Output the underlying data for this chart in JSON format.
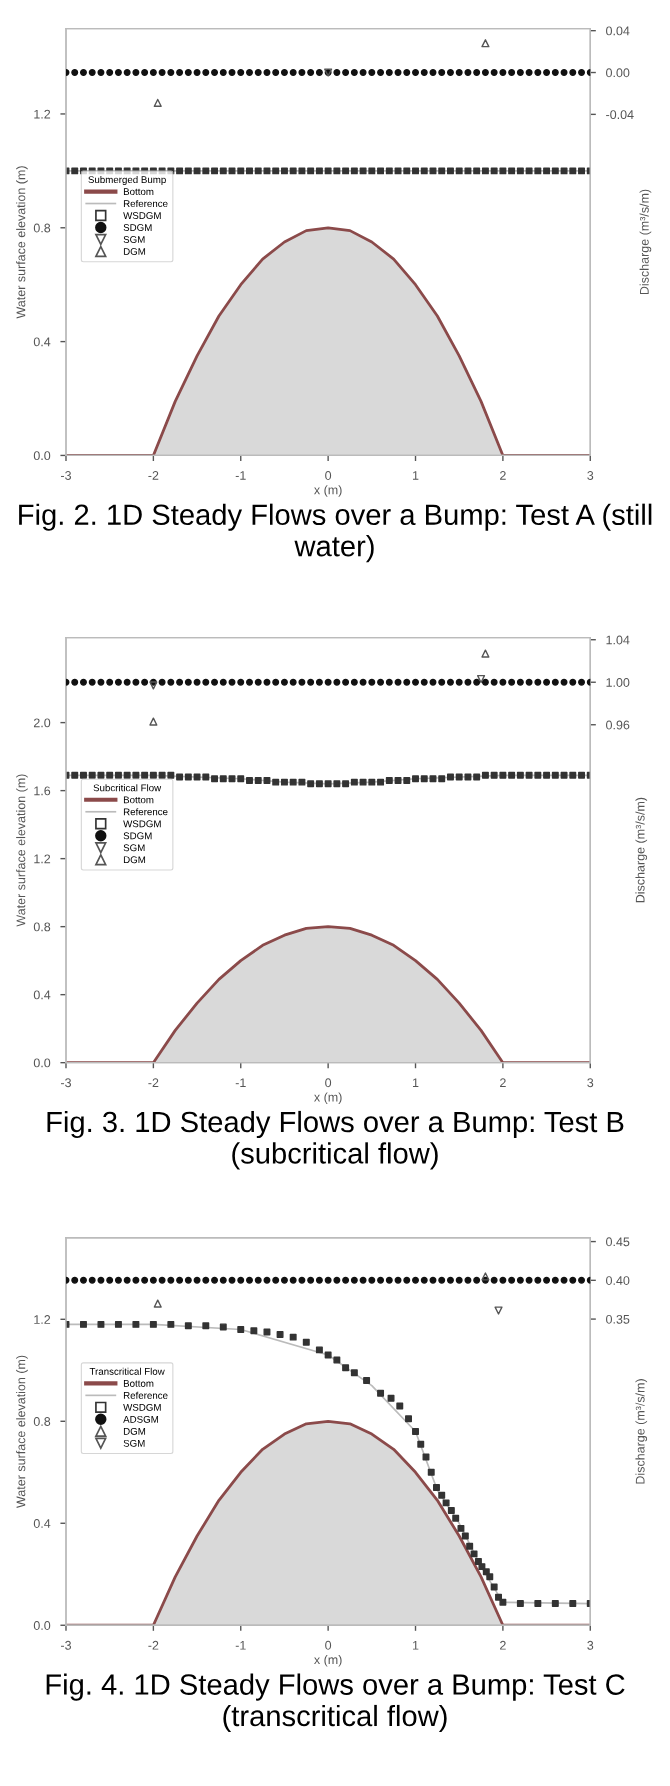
{
  "chart_data": [
    {
      "type": "line",
      "xlabel": "x (m)",
      "ylabel": "Water surface elevation (m)",
      "y2label": "Discharge (m³/s/m)",
      "legend": "left",
      "legend_title": "Submerged Bump",
      "xlim": [
        -3,
        3
      ],
      "xticks": [
        -3,
        -2,
        -1,
        0,
        1,
        2,
        3
      ],
      "ylim": [
        0,
        1.5
      ],
      "yticks": [
        {
          "value": 0,
          "label": "0.0"
        },
        {
          "value": 0.4,
          "label": "0.4"
        },
        {
          "value": 0.8,
          "label": "0.8"
        },
        {
          "value": 1.2,
          "label": "1.2"
        }
      ],
      "y2lim": [
        -0.366,
        0.042
      ],
      "y2ticks": [
        {
          "value": -0.04,
          "label": "-0.04"
        },
        {
          "value": 0,
          "label": "0.00"
        },
        {
          "value": 0.04,
          "label": "0.04"
        }
      ],
      "annotations": [
        "Fig. 2. 1D Steady Flows over a Bump: Test A (still water)"
      ],
      "series": [
        {
          "name": "Bottom",
          "type": "area",
          "color": "#8b4a4a",
          "x": [
            -3,
            -2,
            -1.75,
            -1.5,
            -1.25,
            -1,
            -0.75,
            -0.5,
            -0.25,
            0,
            0.25,
            0.5,
            0.75,
            1,
            1.25,
            1.5,
            1.75,
            2,
            3
          ],
          "values": [
            0,
            0,
            0.19,
            0.35,
            0.49,
            0.6,
            0.69,
            0.75,
            0.79,
            0.8,
            0.79,
            0.75,
            0.69,
            0.6,
            0.49,
            0.35,
            0.19,
            0,
            0
          ]
        },
        {
          "name": "Reference",
          "type": "line",
          "color": "#bbbbbb",
          "x": [
            -3,
            3
          ],
          "values": [
            1.0,
            1.0
          ]
        },
        {
          "name": "WSDGM",
          "type": "scatter",
          "marker": "square",
          "color": "#333333",
          "x": [
            -3,
            -2.9,
            -2.8,
            -2.7,
            -2.6,
            -2.5,
            -2.4,
            -2.3,
            -2.2,
            -2.1,
            -2,
            -1.9,
            -1.8,
            -1.7,
            -1.6,
            -1.5,
            -1.4,
            -1.3,
            -1.2,
            -1.1,
            -1,
            -0.9,
            -0.8,
            -0.7,
            -0.6,
            -0.5,
            -0.4,
            -0.3,
            -0.2,
            -0.1,
            0,
            0.1,
            0.2,
            0.3,
            0.4,
            0.5,
            0.6,
            0.7,
            0.8,
            0.9,
            1,
            1.1,
            1.2,
            1.3,
            1.4,
            1.5,
            1.6,
            1.7,
            1.8,
            1.9,
            2,
            2.1,
            2.2,
            2.3,
            2.4,
            2.5,
            2.6,
            2.7,
            2.8,
            2.9,
            3
          ],
          "values": [
            1.0,
            1.0,
            1.0,
            1.0,
            1.0,
            1.0,
            1.0,
            1.0,
            1.0,
            1.0,
            1.0,
            1.0,
            1.0,
            1.0,
            1.0,
            1.0,
            1.0,
            1.0,
            1.0,
            1.0,
            1.0,
            1.0,
            1.0,
            1.0,
            1.0,
            1.0,
            1.0,
            1.0,
            1.0,
            1.0,
            1.0,
            1.0,
            1.0,
            1.0,
            1.0,
            1.0,
            1.0,
            1.0,
            1.0,
            1.0,
            1.0,
            1.0,
            1.0,
            1.0,
            1.0,
            1.0,
            1.0,
            1.0,
            1.0,
            1.0,
            1.0,
            1.0,
            1.0,
            1.0,
            1.0,
            1.0,
            1.0,
            1.0,
            1.0,
            1.0,
            1.0
          ]
        },
        {
          "name": "SDGM",
          "type": "scatter",
          "marker": "circle",
          "axis": "y2",
          "color": "#111111",
          "x": [
            -3,
            -2.9,
            -2.8,
            -2.7,
            -2.6,
            -2.5,
            -2.4,
            -2.3,
            -2.2,
            -2.1,
            -2,
            -1.9,
            -1.8,
            -1.7,
            -1.6,
            -1.5,
            -1.4,
            -1.3,
            -1.2,
            -1.1,
            -1,
            -0.9,
            -0.8,
            -0.7,
            -0.6,
            -0.5,
            -0.4,
            -0.3,
            -0.2,
            -0.1,
            0,
            0.1,
            0.2,
            0.3,
            0.4,
            0.5,
            0.6,
            0.7,
            0.8,
            0.9,
            1,
            1.1,
            1.2,
            1.3,
            1.4,
            1.5,
            1.6,
            1.7,
            1.8,
            1.9,
            2,
            2.1,
            2.2,
            2.3,
            2.4,
            2.5,
            2.6,
            2.7,
            2.8,
            2.9,
            3
          ],
          "values": [
            0,
            0,
            0,
            0,
            0,
            0,
            0,
            0,
            0,
            0,
            0,
            0,
            0,
            0,
            0,
            0,
            0,
            0,
            0,
            0,
            0,
            0,
            0,
            0,
            0,
            0,
            0,
            0,
            0,
            0,
            0,
            0,
            0,
            0,
            0,
            0,
            0,
            0,
            0,
            0,
            0,
            0,
            0,
            0,
            0,
            0,
            0,
            0,
            0,
            0,
            0,
            0,
            0,
            0,
            0,
            0,
            0,
            0,
            0,
            0,
            0
          ]
        },
        {
          "name": "SGM",
          "type": "scatter",
          "marker": "triangle_down",
          "axis": "y2",
          "color": "#555555",
          "x": [
            0
          ],
          "values": [
            0.0
          ]
        },
        {
          "name": "DGM",
          "type": "scatter",
          "marker": "triangle",
          "axis": "y2",
          "color": "#555555",
          "x": [
            -1.95,
            1.8
          ],
          "values": [
            -0.029,
            0.028
          ]
        }
      ]
    },
    {
      "type": "line",
      "xlabel": "x (m)",
      "ylabel": "Water surface elevation (m)",
      "y2label": "Discharge (m³/s/m)",
      "legend": "left",
      "legend_title": "Subcritical Flow",
      "xlim": [
        -3,
        3
      ],
      "xticks": [
        -3,
        -2,
        -1,
        0,
        1,
        2,
        3
      ],
      "ylim": [
        0,
        2.5
      ],
      "yticks": [
        {
          "value": 0,
          "label": "0.0"
        },
        {
          "value": 0.4,
          "label": "0.4"
        },
        {
          "value": 0.8,
          "label": "0.8"
        },
        {
          "value": 1.2,
          "label": "1.2"
        },
        {
          "value": 1.6,
          "label": "1.6"
        },
        {
          "value": 2.0,
          "label": "2.0"
        }
      ],
      "y2lim": [
        0.642,
        1.042
      ],
      "y2ticks": [
        {
          "value": 0.96,
          "label": "0.96"
        },
        {
          "value": 1.0,
          "label": "1.00"
        },
        {
          "value": 1.04,
          "label": "1.04"
        }
      ],
      "annotations": [
        "Fig. 3. 1D Steady Flows over a Bump: Test B (subcritical flow)"
      ],
      "series": [
        {
          "name": "Bottom",
          "type": "area",
          "color": "#8b4a4a",
          "x": [
            -3,
            -2,
            -1.75,
            -1.5,
            -1.25,
            -1,
            -0.75,
            -0.5,
            -0.25,
            0,
            0.25,
            0.5,
            0.75,
            1,
            1.25,
            1.5,
            1.75,
            2,
            3
          ],
          "values": [
            0,
            0,
            0.19,
            0.35,
            0.49,
            0.6,
            0.69,
            0.75,
            0.79,
            0.8,
            0.79,
            0.75,
            0.69,
            0.6,
            0.49,
            0.35,
            0.19,
            0,
            0
          ]
        },
        {
          "name": "Reference",
          "type": "line",
          "color": "#bbbbbb",
          "x": [
            -3,
            -2,
            -1,
            -0.5,
            0,
            0.5,
            1,
            2,
            3
          ],
          "values": [
            1.69,
            1.69,
            1.67,
            1.65,
            1.64,
            1.65,
            1.67,
            1.69,
            1.69
          ]
        },
        {
          "name": "WSDGM",
          "type": "scatter",
          "marker": "square",
          "color": "#333333",
          "x": [
            -3,
            -2.9,
            -2.8,
            -2.7,
            -2.6,
            -2.5,
            -2.4,
            -2.3,
            -2.2,
            -2.1,
            -2,
            -1.9,
            -1.8,
            -1.7,
            -1.6,
            -1.5,
            -1.4,
            -1.3,
            -1.2,
            -1.1,
            -1,
            -0.9,
            -0.8,
            -0.7,
            -0.6,
            -0.5,
            -0.4,
            -0.3,
            -0.2,
            -0.1,
            0,
            0.1,
            0.2,
            0.3,
            0.4,
            0.5,
            0.6,
            0.7,
            0.8,
            0.9,
            1,
            1.1,
            1.2,
            1.3,
            1.4,
            1.5,
            1.6,
            1.7,
            1.8,
            1.9,
            2,
            2.1,
            2.2,
            2.3,
            2.4,
            2.5,
            2.6,
            2.7,
            2.8,
            2.9,
            3
          ],
          "values": [
            1.69,
            1.69,
            1.69,
            1.69,
            1.69,
            1.69,
            1.69,
            1.69,
            1.69,
            1.69,
            1.69,
            1.69,
            1.69,
            1.68,
            1.68,
            1.68,
            1.68,
            1.67,
            1.67,
            1.67,
            1.67,
            1.66,
            1.66,
            1.66,
            1.65,
            1.65,
            1.65,
            1.65,
            1.64,
            1.64,
            1.64,
            1.64,
            1.64,
            1.65,
            1.65,
            1.65,
            1.65,
            1.66,
            1.66,
            1.66,
            1.67,
            1.67,
            1.67,
            1.67,
            1.68,
            1.68,
            1.68,
            1.68,
            1.69,
            1.69,
            1.69,
            1.69,
            1.69,
            1.69,
            1.69,
            1.69,
            1.69,
            1.69,
            1.69,
            1.69,
            1.69
          ]
        },
        {
          "name": "SDGM",
          "type": "scatter",
          "marker": "circle",
          "axis": "y2",
          "color": "#111111",
          "x": [
            -3,
            -2.9,
            -2.8,
            -2.7,
            -2.6,
            -2.5,
            -2.4,
            -2.3,
            -2.2,
            -2.1,
            -2,
            -1.9,
            -1.8,
            -1.7,
            -1.6,
            -1.5,
            -1.4,
            -1.3,
            -1.2,
            -1.1,
            -1,
            -0.9,
            -0.8,
            -0.7,
            -0.6,
            -0.5,
            -0.4,
            -0.3,
            -0.2,
            -0.1,
            0,
            0.1,
            0.2,
            0.3,
            0.4,
            0.5,
            0.6,
            0.7,
            0.8,
            0.9,
            1,
            1.1,
            1.2,
            1.3,
            1.4,
            1.5,
            1.6,
            1.7,
            1.8,
            1.9,
            2,
            2.1,
            2.2,
            2.3,
            2.4,
            2.5,
            2.6,
            2.7,
            2.8,
            2.9,
            3
          ],
          "values": [
            1.0,
            1.0,
            1.0,
            1.0,
            1.0,
            1.0,
            1.0,
            1.0,
            1.0,
            1.0,
            1.0,
            1.0,
            1.0,
            1.0,
            1.0,
            1.0,
            1.0,
            1.0,
            1.0,
            1.0,
            1.0,
            1.0,
            1.0,
            1.0,
            1.0,
            1.0,
            1.0,
            1.0,
            1.0,
            1.0,
            1.0,
            1.0,
            1.0,
            1.0,
            1.0,
            1.0,
            1.0,
            1.0,
            1.0,
            1.0,
            1.0,
            1.0,
            1.0,
            1.0,
            1.0,
            1.0,
            1.0,
            1.0,
            1.0,
            1.0,
            1.0,
            1.0,
            1.0,
            1.0,
            1.0,
            1.0,
            1.0,
            1.0,
            1.0,
            1.0,
            1.0
          ]
        },
        {
          "name": "SGM",
          "type": "scatter",
          "marker": "triangle_down",
          "axis": "y2",
          "color": "#555555",
          "x": [
            -2.0,
            1.75
          ],
          "values": [
            0.997,
            1.003
          ]
        },
        {
          "name": "DGM",
          "type": "scatter",
          "marker": "triangle",
          "axis": "y2",
          "color": "#555555",
          "x": [
            -2.0,
            1.8
          ],
          "values": [
            0.963,
            1.027
          ]
        }
      ]
    },
    {
      "type": "line",
      "xlabel": "x (m)",
      "ylabel": "Water surface elevation (m)",
      "y2label": "Discharge (m³/s/m)",
      "legend": "left",
      "legend_title": "Transcritical Flow",
      "xlim": [
        -3,
        3
      ],
      "xticks": [
        -3,
        -2,
        -1,
        0,
        1,
        2,
        3
      ],
      "ylim": [
        0,
        1.52
      ],
      "yticks": [
        {
          "value": 0,
          "label": "0.0"
        },
        {
          "value": 0.4,
          "label": "0.4"
        },
        {
          "value": 0.8,
          "label": "0.8"
        },
        {
          "value": 1.2,
          "label": "1.2"
        }
      ],
      "y2lim": [
        -0.045,
        0.455
      ],
      "y2ticks": [
        {
          "value": 0.35,
          "label": "0.35"
        },
        {
          "value": 0.4,
          "label": "0.40"
        },
        {
          "value": 0.45,
          "label": "0.45"
        }
      ],
      "annotations": [
        "Fig. 4. 1D Steady Flows over a Bump: Test C (transcritical flow)"
      ],
      "series": [
        {
          "name": "Bottom",
          "type": "area",
          "color": "#8b4a4a",
          "x": [
            -3,
            -2,
            -1.75,
            -1.5,
            -1.25,
            -1,
            -0.75,
            -0.5,
            -0.25,
            0,
            0.25,
            0.5,
            0.75,
            1,
            1.25,
            1.5,
            1.75,
            2,
            3
          ],
          "values": [
            0,
            0,
            0.19,
            0.35,
            0.49,
            0.6,
            0.69,
            0.75,
            0.79,
            0.8,
            0.79,
            0.75,
            0.69,
            0.6,
            0.49,
            0.35,
            0.19,
            0,
            0
          ]
        },
        {
          "name": "Reference",
          "type": "line",
          "color": "#bbbbbb",
          "x": [
            -3,
            -2,
            -1,
            0,
            0.5,
            1,
            1.25,
            1.5,
            1.75,
            2,
            3
          ],
          "values": [
            1.18,
            1.18,
            1.16,
            1.06,
            0.94,
            0.76,
            0.53,
            0.4,
            0.23,
            0.09,
            0.085
          ]
        },
        {
          "name": "WSDGM",
          "type": "scatter",
          "marker": "square",
          "color": "#333333",
          "x": [
            -3,
            -2.8,
            -2.6,
            -2.4,
            -2.2,
            -2,
            -1.8,
            -1.6,
            -1.4,
            -1.2,
            -1,
            -0.85,
            -0.7,
            -0.55,
            -0.4,
            -0.25,
            -0.1,
            0,
            0.1,
            0.2,
            0.3,
            0.44,
            0.6,
            0.72,
            0.82,
            0.92,
            1.0,
            1.06,
            1.12,
            1.18,
            1.24,
            1.3,
            1.35,
            1.41,
            1.46,
            1.52,
            1.57,
            1.62,
            1.67,
            1.72,
            1.76,
            1.81,
            1.85,
            1.9,
            1.95,
            2.0,
            2.2,
            2.4,
            2.6,
            2.8,
            3
          ],
          "values": [
            1.18,
            1.18,
            1.18,
            1.18,
            1.18,
            1.18,
            1.18,
            1.175,
            1.175,
            1.17,
            1.16,
            1.155,
            1.15,
            1.14,
            1.13,
            1.11,
            1.08,
            1.06,
            1.04,
            1.01,
            0.99,
            0.96,
            0.91,
            0.89,
            0.86,
            0.81,
            0.76,
            0.71,
            0.66,
            0.6,
            0.54,
            0.51,
            0.48,
            0.45,
            0.42,
            0.38,
            0.35,
            0.31,
            0.28,
            0.25,
            0.23,
            0.21,
            0.19,
            0.15,
            0.11,
            0.09,
            0.085,
            0.085,
            0.085,
            0.085,
            0.085
          ]
        },
        {
          "name": "ADSGM",
          "type": "scatter",
          "marker": "circle",
          "axis": "y2",
          "color": "#111111",
          "x": [
            -3,
            -2.9,
            -2.8,
            -2.7,
            -2.6,
            -2.5,
            -2.4,
            -2.3,
            -2.2,
            -2.1,
            -2,
            -1.9,
            -1.8,
            -1.7,
            -1.6,
            -1.5,
            -1.4,
            -1.3,
            -1.2,
            -1.1,
            -1,
            -0.9,
            -0.8,
            -0.7,
            -0.6,
            -0.5,
            -0.4,
            -0.3,
            -0.2,
            -0.1,
            0,
            0.1,
            0.2,
            0.3,
            0.4,
            0.5,
            0.6,
            0.7,
            0.8,
            0.9,
            1,
            1.1,
            1.2,
            1.3,
            1.4,
            1.5,
            1.6,
            1.7,
            1.8,
            1.9,
            2,
            2.1,
            2.2,
            2.3,
            2.4,
            2.5,
            2.6,
            2.7,
            2.8,
            2.9,
            3
          ],
          "values": [
            0.4,
            0.4,
            0.4,
            0.4,
            0.4,
            0.4,
            0.4,
            0.4,
            0.4,
            0.4,
            0.4,
            0.4,
            0.4,
            0.4,
            0.4,
            0.4,
            0.4,
            0.4,
            0.4,
            0.4,
            0.4,
            0.4,
            0.4,
            0.4,
            0.4,
            0.4,
            0.4,
            0.4,
            0.4,
            0.4,
            0.4,
            0.4,
            0.4,
            0.4,
            0.4,
            0.4,
            0.4,
            0.4,
            0.4,
            0.4,
            0.4,
            0.4,
            0.4,
            0.4,
            0.4,
            0.4,
            0.4,
            0.4,
            0.4,
            0.4,
            0.4,
            0.4,
            0.4,
            0.4,
            0.4,
            0.4,
            0.4,
            0.4,
            0.4,
            0.4,
            0.4
          ]
        },
        {
          "name": "DGM",
          "type": "scatter",
          "marker": "triangle",
          "axis": "y2",
          "color": "#555555",
          "x": [
            -1.95,
            1.8
          ],
          "values": [
            0.37,
            0.405
          ]
        },
        {
          "name": "SGM",
          "type": "scatter",
          "marker": "triangle_down",
          "axis": "y2",
          "color": "#555555",
          "x": [
            1.95
          ],
          "values": [
            0.361
          ]
        }
      ]
    }
  ]
}
